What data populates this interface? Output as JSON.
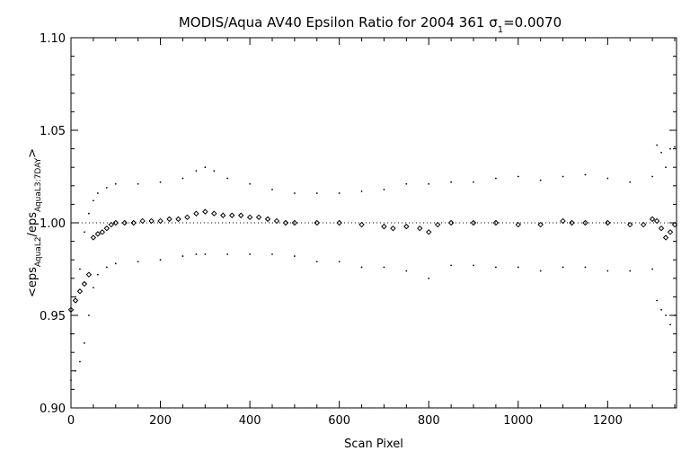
{
  "chart_data": {
    "type": "scatter",
    "title_main": "MODIS/Aqua AV40 Epsilon Ratio for 2004 361 ",
    "title_sigma": "σ",
    "title_sigma_sub": "1",
    "title_sigma_value": "=0.0070",
    "xlabel": "Scan Pixel",
    "ylabel_prefix": "<eps",
    "ylabel_sub1": "AquaL2",
    "ylabel_mid": "/eps",
    "ylabel_sub2": "AquaL3:7DAY",
    "ylabel_suffix": ">",
    "xlim": [
      0,
      1354
    ],
    "ylim": [
      0.9,
      1.1
    ],
    "x_ticks": [
      {
        "value": 0,
        "label": "0"
      },
      {
        "value": 200,
        "label": "200"
      },
      {
        "value": 400,
        "label": "400"
      },
      {
        "value": 600,
        "label": "600"
      },
      {
        "value": 800,
        "label": "800"
      },
      {
        "value": 1000,
        "label": "1000"
      },
      {
        "value": 1200,
        "label": "1200"
      }
    ],
    "y_ticks": [
      {
        "value": 0.9,
        "label": "0.90"
      },
      {
        "value": 0.95,
        "label": "0.95"
      },
      {
        "value": 1.0,
        "label": "1.00"
      },
      {
        "value": 1.05,
        "label": "1.05"
      },
      {
        "value": 1.1,
        "label": "1.10"
      }
    ],
    "reference_line": 1.0,
    "grid": false,
    "series": [
      {
        "role": "mean",
        "marker": "diamond",
        "x": [
          0,
          10,
          20,
          30,
          40,
          50,
          60,
          70,
          80,
          90,
          100,
          120,
          140,
          160,
          180,
          200,
          220,
          240,
          260,
          280,
          300,
          320,
          340,
          360,
          380,
          400,
          420,
          440,
          460,
          480,
          500,
          550,
          600,
          650,
          700,
          720,
          750,
          780,
          800,
          820,
          850,
          900,
          950,
          1000,
          1050,
          1100,
          1120,
          1150,
          1200,
          1250,
          1280,
          1300,
          1310,
          1320,
          1330,
          1340,
          1350
        ],
        "y": [
          0.953,
          0.958,
          0.963,
          0.967,
          0.972,
          0.992,
          0.994,
          0.995,
          0.997,
          0.999,
          1.0,
          1.0,
          1.0,
          1.001,
          1.001,
          1.001,
          1.002,
          1.002,
          1.003,
          1.005,
          1.006,
          1.005,
          1.004,
          1.004,
          1.004,
          1.003,
          1.003,
          1.002,
          1.001,
          1.0,
          1.0,
          1.0,
          1.0,
          0.999,
          0.998,
          0.997,
          0.998,
          0.997,
          0.995,
          0.999,
          1.0,
          1.0,
          1.0,
          0.999,
          0.999,
          1.001,
          1.0,
          1.0,
          1.0,
          0.999,
          0.999,
          1.002,
          1.001,
          0.997,
          0.992,
          0.995,
          0.999
        ]
      },
      {
        "role": "upper",
        "marker": "dot",
        "x": [
          0,
          10,
          20,
          30,
          40,
          50,
          60,
          80,
          100,
          150,
          200,
          250,
          280,
          300,
          320,
          350,
          400,
          450,
          500,
          550,
          600,
          650,
          700,
          750,
          800,
          850,
          900,
          950,
          1000,
          1050,
          1100,
          1150,
          1200,
          1250,
          1300,
          1310,
          1320,
          1330,
          1340,
          1350
        ],
        "y": [
          0.94,
          0.96,
          0.975,
          0.995,
          1.005,
          1.012,
          1.016,
          1.019,
          1.021,
          1.021,
          1.022,
          1.024,
          1.028,
          1.03,
          1.028,
          1.024,
          1.021,
          1.018,
          1.016,
          1.016,
          1.016,
          1.017,
          1.018,
          1.021,
          1.021,
          1.022,
          1.022,
          1.024,
          1.025,
          1.023,
          1.025,
          1.026,
          1.024,
          1.022,
          1.025,
          1.042,
          1.038,
          1.03,
          1.04,
          1.041
        ]
      },
      {
        "role": "lower",
        "marker": "dot",
        "x": [
          0,
          10,
          20,
          30,
          40,
          50,
          60,
          80,
          100,
          150,
          200,
          250,
          280,
          300,
          350,
          400,
          450,
          500,
          550,
          600,
          650,
          700,
          750,
          800,
          850,
          900,
          950,
          1000,
          1050,
          1100,
          1150,
          1200,
          1250,
          1300,
          1310,
          1320,
          1330,
          1340,
          1350
        ],
        "y": [
          0.915,
          0.92,
          0.925,
          0.935,
          0.95,
          0.965,
          0.972,
          0.976,
          0.978,
          0.979,
          0.98,
          0.982,
          0.983,
          0.983,
          0.983,
          0.983,
          0.983,
          0.982,
          0.979,
          0.979,
          0.976,
          0.976,
          0.974,
          0.97,
          0.977,
          0.977,
          0.976,
          0.976,
          0.974,
          0.976,
          0.976,
          0.974,
          0.974,
          0.975,
          0.958,
          0.953,
          0.95,
          0.945,
          0.95
        ]
      }
    ]
  }
}
